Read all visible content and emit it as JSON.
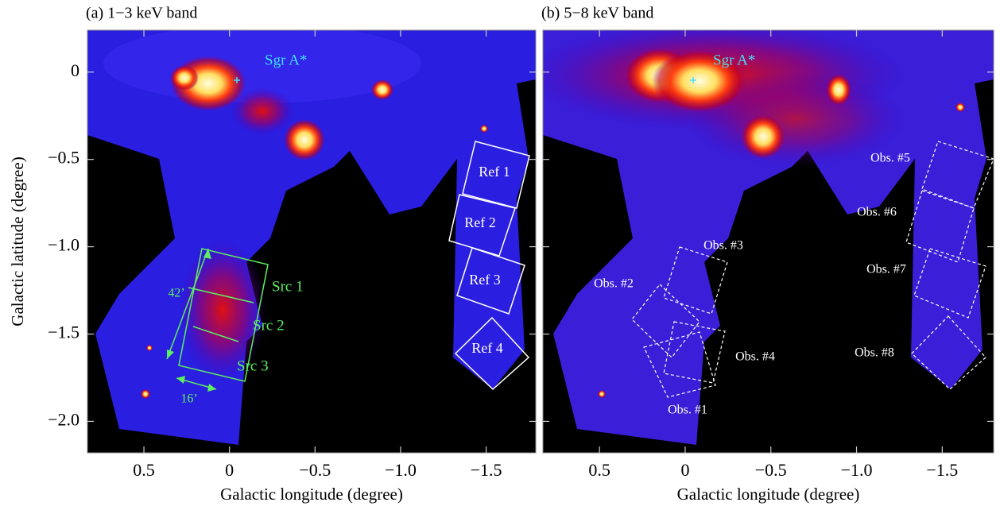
{
  "panels": [
    {
      "title": "(a) 1−3 keV band",
      "x_label": "Galactic longitude (degree)",
      "y_label": "Galactic latitude (degree)",
      "xlim": [
        0.83,
        -1.79
      ],
      "ylim": [
        -2.18,
        0.24
      ],
      "xticks": [
        0.5,
        0,
        {
          "value": -0.5,
          "label": "−0.5"
        },
        {
          "value": -1.0,
          "label": "−1.0"
        },
        {
          "value": -1.5,
          "label": "−1.5"
        }
      ],
      "yticks": [
        0,
        {
          "value": -0.5,
          "label": "−0.5"
        },
        {
          "value": -1.0,
          "label": "−1.0"
        },
        {
          "value": -1.5,
          "label": "−1.5"
        },
        {
          "value": -2.0,
          "label": "−2.0"
        }
      ],
      "annotations": [
        "Sgr A*",
        "Ref 1",
        "Ref 2",
        "Ref 3",
        "Ref 4",
        "Src 1",
        "Src 2",
        "Src 3",
        "42’",
        "16’"
      ]
    },
    {
      "title": "(b) 5−8 keV band",
      "x_label": "Galactic longitude (degree)",
      "xlim": [
        0.83,
        -1.8
      ],
      "ylim": [
        -2.18,
        0.24
      ],
      "xticks": [
        0.5,
        0,
        {
          "value": -0.5,
          "label": "−0.5"
        },
        {
          "value": -1.0,
          "label": "−1.0"
        },
        {
          "value": -1.5,
          "label": "−1.5"
        }
      ],
      "yticks": [
        0,
        -0.5,
        -1.0,
        -1.5,
        -2.0
      ],
      "annotations": [
        "Sgr A*",
        "Obs. #1",
        "Obs. #2",
        "Obs. #3",
        "Obs. #4",
        "Obs. #5",
        "Obs. #6",
        "Obs. #7",
        "Obs. #8"
      ]
    }
  ]
}
